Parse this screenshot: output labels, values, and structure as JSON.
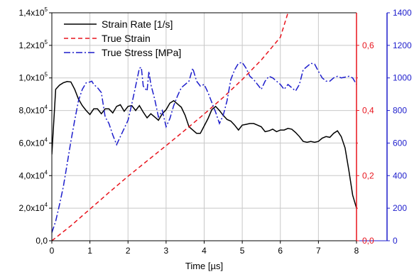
{
  "chart_data": {
    "type": "line",
    "xlabel": "Time [µs]",
    "xlim": [
      0,
      8
    ],
    "x_ticks": [
      "0",
      "1",
      "2",
      "3",
      "4",
      "5",
      "6",
      "7",
      "8"
    ],
    "grid": true,
    "legend_position": "top-left",
    "axes": {
      "left": {
        "lim": [
          0,
          140000
        ],
        "ticks": [
          {
            "mantissa": "0,0",
            "exp": ""
          },
          {
            "mantissa": "2,0x10",
            "exp": "4"
          },
          {
            "mantissa": "4,0x10",
            "exp": "4"
          },
          {
            "mantissa": "6,0x10",
            "exp": "4"
          },
          {
            "mantissa": "8,0x10",
            "exp": "4"
          },
          {
            "mantissa": "1,0x10",
            "exp": "5"
          },
          {
            "mantissa": "1,2x10",
            "exp": "5"
          },
          {
            "mantissa": "1,4x10",
            "exp": "5"
          }
        ],
        "color": "#000000"
      },
      "right1": {
        "lim": [
          0,
          0.7
        ],
        "ticks": [
          "0,0",
          "0,2",
          "0,4",
          "0,6"
        ],
        "color": "#e8141d"
      },
      "right2": {
        "lim": [
          0,
          1400
        ],
        "ticks": [
          "0",
          "200",
          "400",
          "600",
          "800",
          "1000",
          "1200",
          "1400"
        ],
        "color": "#1d1dcc"
      }
    },
    "series": [
      {
        "name": "Strain Rate [1/s]",
        "axis": "left",
        "color": "#000000",
        "dash": "",
        "x": [
          0,
          0.1,
          0.2,
          0.3,
          0.4,
          0.5,
          0.6,
          0.7,
          0.8,
          0.9,
          1.0,
          1.1,
          1.2,
          1.3,
          1.4,
          1.5,
          1.6,
          1.7,
          1.8,
          1.9,
          2.0,
          2.1,
          2.2,
          2.3,
          2.4,
          2.5,
          2.6,
          2.7,
          2.8,
          2.9,
          3.0,
          3.1,
          3.2,
          3.3,
          3.4,
          3.5,
          3.6,
          3.7,
          3.8,
          3.9,
          4.0,
          4.1,
          4.2,
          4.3,
          4.4,
          4.5,
          4.6,
          4.7,
          4.8,
          4.9,
          5.0,
          5.1,
          5.2,
          5.3,
          5.4,
          5.5,
          5.6,
          5.7,
          5.8,
          5.9,
          6.0,
          6.1,
          6.2,
          6.3,
          6.4,
          6.5,
          6.6,
          6.7,
          6.8,
          6.9,
          7.0,
          7.1,
          7.2,
          7.3,
          7.4,
          7.5,
          7.6,
          7.7,
          7.8,
          7.9,
          8.0
        ],
        "y": [
          53000,
          93000,
          95500,
          97000,
          97800,
          97500,
          93000,
          87000,
          83000,
          80000,
          77500,
          81000,
          81000,
          78000,
          81000,
          81000,
          78500,
          82500,
          83500,
          79500,
          82500,
          83000,
          80000,
          83000,
          79000,
          75500,
          78000,
          76000,
          74000,
          78000,
          80500,
          84500,
          86000,
          84000,
          82000,
          77000,
          70000,
          68000,
          66000,
          66000,
          70500,
          75000,
          80500,
          82500,
          80000,
          77000,
          74500,
          73500,
          71000,
          68000,
          71000,
          71500,
          72000,
          72000,
          71000,
          70000,
          67000,
          67500,
          68500,
          67000,
          68000,
          68000,
          69000,
          68500,
          66500,
          64000,
          61000,
          60500,
          61000,
          60500,
          61000,
          63000,
          64000,
          63500,
          66000,
          67500,
          64000,
          57000,
          43000,
          28000,
          20000
        ]
      },
      {
        "name": "True Strain",
        "axis": "right1",
        "color": "#e8141d",
        "dash": "6,4",
        "x": [
          0,
          0.5,
          1.0,
          1.5,
          2.0,
          2.5,
          3.0,
          3.5,
          4.0,
          4.5,
          5.0,
          5.5,
          6.0,
          6.2
        ],
        "y": [
          0.0,
          0.046,
          0.097,
          0.148,
          0.198,
          0.245,
          0.292,
          0.34,
          0.389,
          0.44,
          0.495,
          0.555,
          0.625,
          0.7
        ]
      },
      {
        "name": "True Stress [MPa]",
        "axis": "right2",
        "color": "#1d1dcc",
        "dash": "9,3,2,3",
        "x": [
          0,
          0.1,
          0.2,
          0.3,
          0.4,
          0.5,
          0.6,
          0.7,
          0.8,
          0.9,
          1.0,
          1.05,
          1.1,
          1.2,
          1.3,
          1.4,
          1.5,
          1.6,
          1.7,
          1.8,
          1.9,
          2.0,
          2.1,
          2.2,
          2.3,
          2.35,
          2.4,
          2.5,
          2.55,
          2.6,
          2.7,
          2.8,
          2.9,
          3.0,
          3.1,
          3.2,
          3.3,
          3.4,
          3.5,
          3.6,
          3.7,
          3.8,
          3.9,
          4.0,
          4.1,
          4.2,
          4.3,
          4.4,
          4.5,
          4.6,
          4.7,
          4.8,
          4.9,
          5.0,
          5.1,
          5.2,
          5.3,
          5.4,
          5.5,
          5.6,
          5.7,
          5.8,
          5.9,
          6.0,
          6.1,
          6.2,
          6.3,
          6.4,
          6.5,
          6.6,
          6.7,
          6.8,
          6.9,
          7.0,
          7.1,
          7.2,
          7.3,
          7.4,
          7.5,
          7.6,
          7.7,
          7.8,
          7.9,
          8.0
        ],
        "y": [
          50,
          120,
          220,
          330,
          470,
          610,
          740,
          860,
          930,
          970,
          975,
          980,
          960,
          940,
          910,
          760,
          720,
          650,
          590,
          640,
          690,
          740,
          840,
          950,
          1060,
          1065,
          950,
          920,
          1040,
          960,
          870,
          760,
          800,
          700,
          750,
          830,
          890,
          940,
          960,
          980,
          1060,
          980,
          950,
          960,
          910,
          850,
          790,
          720,
          770,
          860,
          990,
          1050,
          1090,
          1095,
          1060,
          1010,
          990,
          960,
          930,
          980,
          1010,
          1000,
          980,
          960,
          930,
          960,
          940,
          920,
          960,
          1050,
          1070,
          1090,
          1085,
          1040,
          1000,
          980,
          980,
          1000,
          1010,
          1000,
          1005,
          1010,
          1000,
          960
        ]
      }
    ]
  }
}
